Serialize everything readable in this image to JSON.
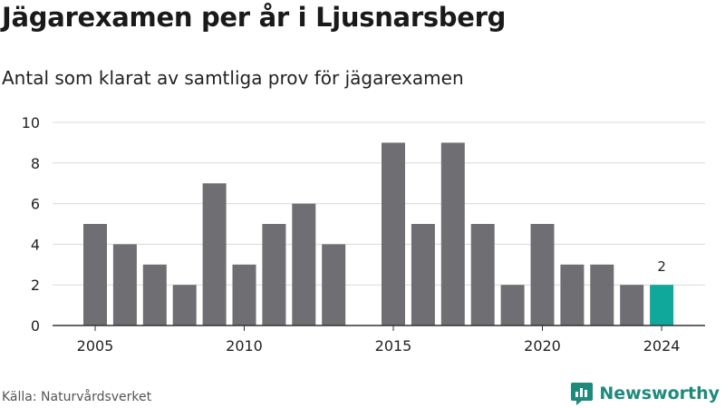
{
  "chart_data": {
    "type": "bar",
    "title": "Jägarexamen per år i Ljusnarsberg",
    "subtitle": "Antal som klarat av samtliga prov för jägarexamen",
    "categories": [
      2005,
      2006,
      2007,
      2008,
      2009,
      2010,
      2011,
      2012,
      2013,
      2014,
      2015,
      2016,
      2017,
      2018,
      2019,
      2020,
      2021,
      2022,
      2023,
      2024
    ],
    "values": [
      5,
      4,
      3,
      2,
      7,
      3,
      5,
      6,
      4,
      0,
      9,
      5,
      9,
      5,
      2,
      5,
      3,
      3,
      2,
      2
    ],
    "x_tick_labels": [
      "2005",
      "2010",
      "2015",
      "2020",
      "2024"
    ],
    "y_ticks": [
      0,
      2,
      4,
      6,
      8,
      10
    ],
    "ylim": [
      0,
      10
    ],
    "grid": true,
    "highlight": {
      "category": 2024,
      "label": "2"
    },
    "colors": {
      "bar": "#6f6e73",
      "highlight": "#0fa89b",
      "grid": "#d9d9d9",
      "axis": "#333333"
    },
    "xlabel": "",
    "ylabel": ""
  },
  "source": "Källa: Naturvårdsverket",
  "brand": {
    "name": "Newsworthy",
    "icon": "newsworthy-logo-icon",
    "color": "#1f8a7c"
  }
}
